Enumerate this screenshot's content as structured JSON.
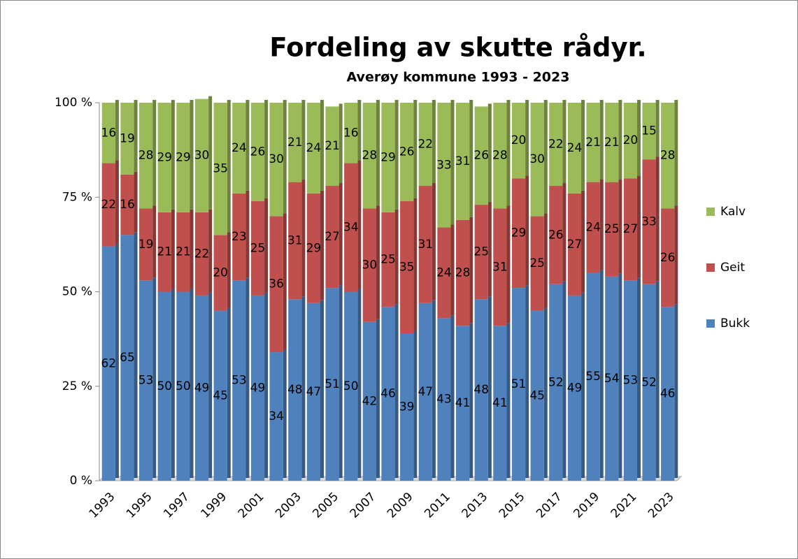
{
  "chart_data": {
    "type": "stacked_bar",
    "title": "Fordeling av skutte rådyr.",
    "subtitle": "Averøy kommune 1993 - 2023",
    "categories": [
      "1993",
      null,
      "1995",
      null,
      "1997",
      null,
      "1999",
      null,
      "2001",
      null,
      "2003",
      null,
      "2005",
      null,
      "2007",
      null,
      "2009",
      null,
      "2011",
      null,
      "2013",
      null,
      "2015",
      null,
      "2017",
      null,
      "2019",
      null,
      "2021",
      null,
      "2023"
    ],
    "series": [
      {
        "name": "Bukk",
        "color": "#4f81bd",
        "values": [
          62,
          65,
          53,
          50,
          50,
          49,
          45,
          53,
          49,
          34,
          48,
          47,
          51,
          50,
          42,
          46,
          39,
          47,
          43,
          41,
          48,
          41,
          51,
          45,
          52,
          49,
          55,
          54,
          53,
          52,
          46
        ]
      },
      {
        "name": "Geit",
        "color": "#c0504d",
        "values": [
          22,
          16,
          19,
          21,
          21,
          22,
          20,
          23,
          25,
          36,
          31,
          29,
          27,
          34,
          30,
          25,
          35,
          31,
          24,
          28,
          25,
          31,
          29,
          25,
          26,
          27,
          24,
          25,
          27,
          33,
          26
        ]
      },
      {
        "name": "Kalv",
        "color": "#9bbb59",
        "values": [
          16,
          19,
          28,
          29,
          29,
          30,
          35,
          24,
          26,
          30,
          21,
          24,
          21,
          16,
          28,
          29,
          26,
          22,
          33,
          31,
          26,
          28,
          20,
          30,
          22,
          24,
          21,
          21,
          20,
          15,
          28
        ]
      }
    ],
    "ylim": [
      0,
      100
    ],
    "yticks": [
      {
        "value": 0,
        "label": "0 %"
      },
      {
        "value": 25,
        "label": "25 %"
      },
      {
        "value": 50,
        "label": "50 %"
      },
      {
        "value": 75,
        "label": "75 %"
      },
      {
        "value": 100,
        "label": "100 %"
      }
    ],
    "legend": "right"
  }
}
